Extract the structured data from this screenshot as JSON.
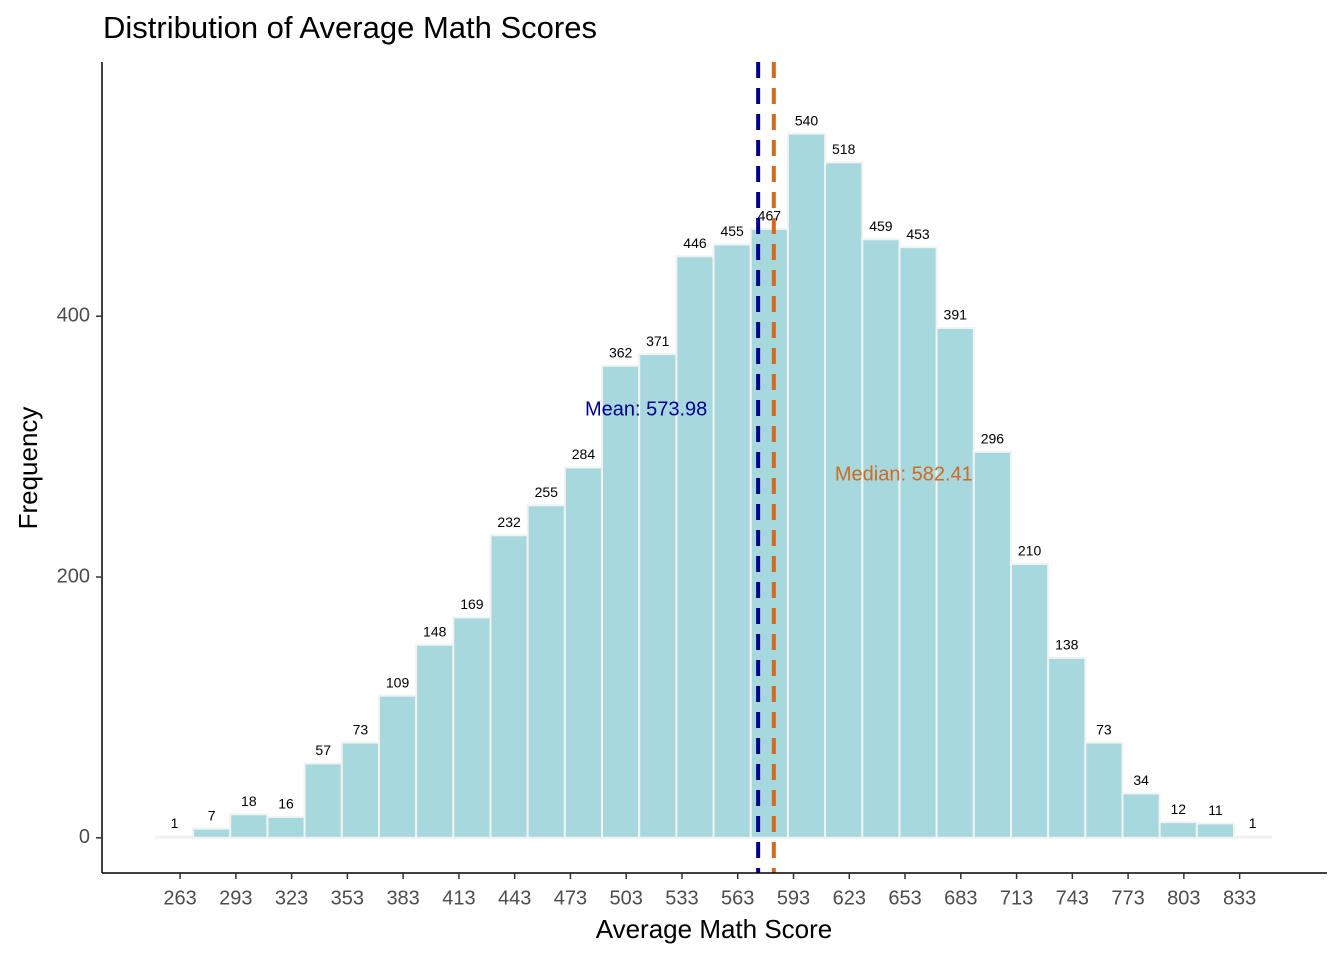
{
  "chart_data": {
    "type": "histogram",
    "title": "Distribution of Average Math Scores",
    "x_label": "Average Math Score",
    "y_label": "Frequency",
    "bins": [
      250,
      270,
      290,
      310,
      330,
      350,
      370,
      390,
      410,
      430,
      450,
      470,
      490,
      510,
      530,
      550,
      570,
      590,
      610,
      630,
      650,
      670,
      690,
      710,
      730,
      750,
      770,
      790,
      810,
      830,
      850
    ],
    "values": [
      1,
      7,
      18,
      16,
      57,
      73,
      109,
      148,
      169,
      232,
      255,
      284,
      362,
      371,
      446,
      455,
      467,
      540,
      518,
      459,
      453,
      391,
      296,
      210,
      138,
      73,
      34,
      12,
      11,
      1
    ],
    "color": "#a6d8de",
    "xlim": [
      221,
      880
    ],
    "ylim": [
      -27,
      595
    ],
    "xticks": [
      263,
      293,
      323,
      353,
      383,
      413,
      443,
      473,
      503,
      533,
      563,
      593,
      623,
      653,
      683,
      713,
      743,
      773,
      803,
      833
    ],
    "yticks": [
      0,
      200,
      400
    ],
    "vlines": [
      {
        "label": "Mean: 573.98",
        "value": 573.98,
        "color": "#00008b"
      },
      {
        "label": "Median: 582.41",
        "value": 582.41,
        "color": "#d2691e"
      }
    ]
  }
}
